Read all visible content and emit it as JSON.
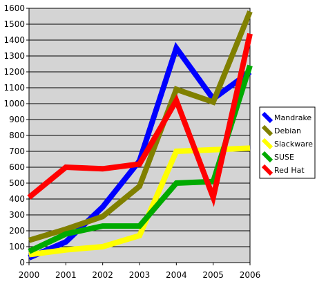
{
  "chart_data": {
    "type": "line",
    "title": "",
    "xlabel": "",
    "ylabel": "",
    "categories": [
      "2000",
      "2001",
      "2002",
      "2003",
      "2004",
      "2005",
      "2006"
    ],
    "ylim": [
      0,
      1600
    ],
    "y_ticks": [
      "0",
      "100",
      "200",
      "300",
      "400",
      "500",
      "600",
      "700",
      "800",
      "900",
      "1000",
      "1100",
      "1200",
      "1300",
      "1400",
      "1500",
      "1600"
    ],
    "grid": "horizontal",
    "plot_background": "#d4d4d4",
    "legend_position": "right",
    "series": [
      {
        "name": "Mandrake",
        "color": "#0000ff",
        "values": [
          30,
          130,
          350,
          640,
          1350,
          1030,
          1200
        ]
      },
      {
        "name": "Debian",
        "color": "#808000",
        "values": [
          140,
          210,
          290,
          480,
          1090,
          1010,
          1580
        ]
      },
      {
        "name": "Slackware",
        "color": "#ffff00",
        "values": [
          50,
          80,
          100,
          170,
          700,
          710,
          720
        ]
      },
      {
        "name": "SUSE",
        "color": "#00aa00",
        "values": [
          70,
          180,
          230,
          230,
          500,
          510,
          1240
        ]
      },
      {
        "name": "Red Hat",
        "color": "#ff0000",
        "values": [
          410,
          600,
          590,
          620,
          1020,
          410,
          1440
        ]
      }
    ]
  }
}
